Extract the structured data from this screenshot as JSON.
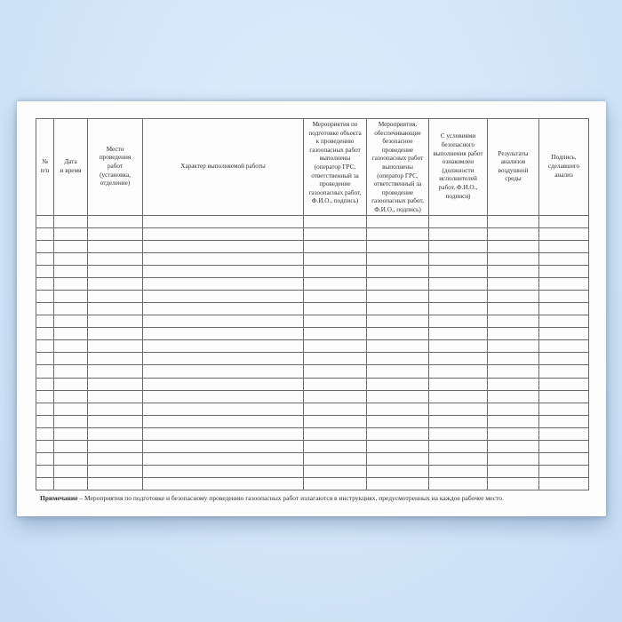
{
  "table": {
    "columns": [
      {
        "id": "number",
        "label": "№\nп/п"
      },
      {
        "id": "date-time",
        "label": "Дата\nи время"
      },
      {
        "id": "work-place",
        "label": "Место\nпроведения\nработ\n(установка,\nотделение)"
      },
      {
        "id": "work-character",
        "label": "Характер выполняемой работы"
      },
      {
        "id": "preparation-measures",
        "label": "Мероприятия по\nподготовке объекта\nк проведению\nгазоопасных работ\nвыполнены\n(оператор ГРС,\nответственный за\nпроведение\nгазоопасных работ,\nФ.И.О., подпись)"
      },
      {
        "id": "safety-measures",
        "label": "Мероприятия,\nобеспечивающие\nбезопасное\nпроведение\nгазоопасных работ\nвыполнены\n(оператор ГРС,\nответственный за\nпроведение\nгазоопасных работ,\nФ.И.О., подпись)"
      },
      {
        "id": "conditions-acknowledged",
        "label": "С условиями\nбезопасного\nвыполнения работ\nознакомлен\n(должности\nисполнителей\nработ, Ф.И.О.,\nподписи)"
      },
      {
        "id": "air-analysis-results",
        "label": "Результаты\nанализов\nвоздушной\nсреды"
      },
      {
        "id": "analyst-signature",
        "label": "Подпись,\nсделавшего\nанализ"
      }
    ],
    "empty_row_count": 22
  },
  "footnote": {
    "label": "Примечание",
    "text": "– Мероприятия по подготовке и безопасному проведению газоопасных работ излагаются в инструкциях, предусмотренных на каждое рабочее место."
  },
  "colors": {
    "background_inner": "#dcecfc",
    "background_mid": "#d3e6f9",
    "background_outer": "#c7ddf4",
    "page": "#fdfdfd",
    "table_line": "#6a6a6a",
    "text": "#2e2e2e"
  }
}
